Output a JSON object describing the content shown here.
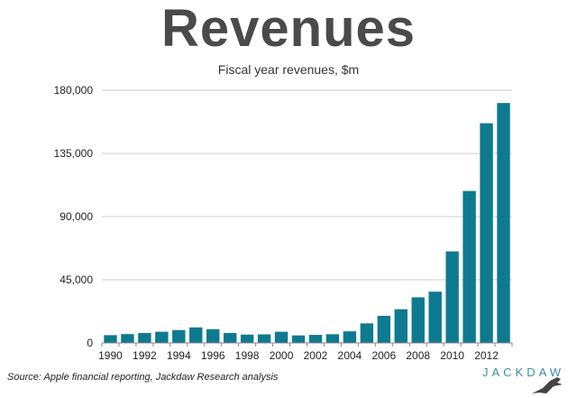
{
  "header": {
    "title": "Revenues",
    "subtitle": "Fiscal year revenues, $m"
  },
  "footer": {
    "source": "Source: Apple financial reporting, Jackdaw Research analysis",
    "brand": "JACKDAW"
  },
  "colors": {
    "bar": "#0e7a8f",
    "grid": "#cccccc",
    "axis": "#888888"
  },
  "chart_data": {
    "type": "bar",
    "title": "Fiscal year revenues, $m",
    "x": [
      1990,
      1991,
      1992,
      1993,
      1994,
      1995,
      1996,
      1997,
      1998,
      1999,
      2000,
      2001,
      2002,
      2003,
      2004,
      2005,
      2006,
      2007,
      2008,
      2009,
      2010,
      2011,
      2012,
      2013
    ],
    "values": [
      5558,
      6309,
      7087,
      7977,
      9189,
      11062,
      9833,
      7081,
      5941,
      6134,
      7983,
      5363,
      5742,
      6207,
      8279,
      13931,
      19315,
      24006,
      32479,
      36537,
      65225,
      108249,
      156508,
      170910
    ],
    "x_tick_labels": [
      "1990",
      "1992",
      "1994",
      "1996",
      "1998",
      "2000",
      "2002",
      "2004",
      "2006",
      "2008",
      "2010",
      "2012"
    ],
    "y_ticks": [
      0,
      45000,
      90000,
      135000,
      180000
    ],
    "y_tick_labels": [
      "0",
      "45,000",
      "90,000",
      "135,000",
      "180,000"
    ],
    "ylim": [
      0,
      180000
    ],
    "grid": true,
    "legend": "none"
  }
}
